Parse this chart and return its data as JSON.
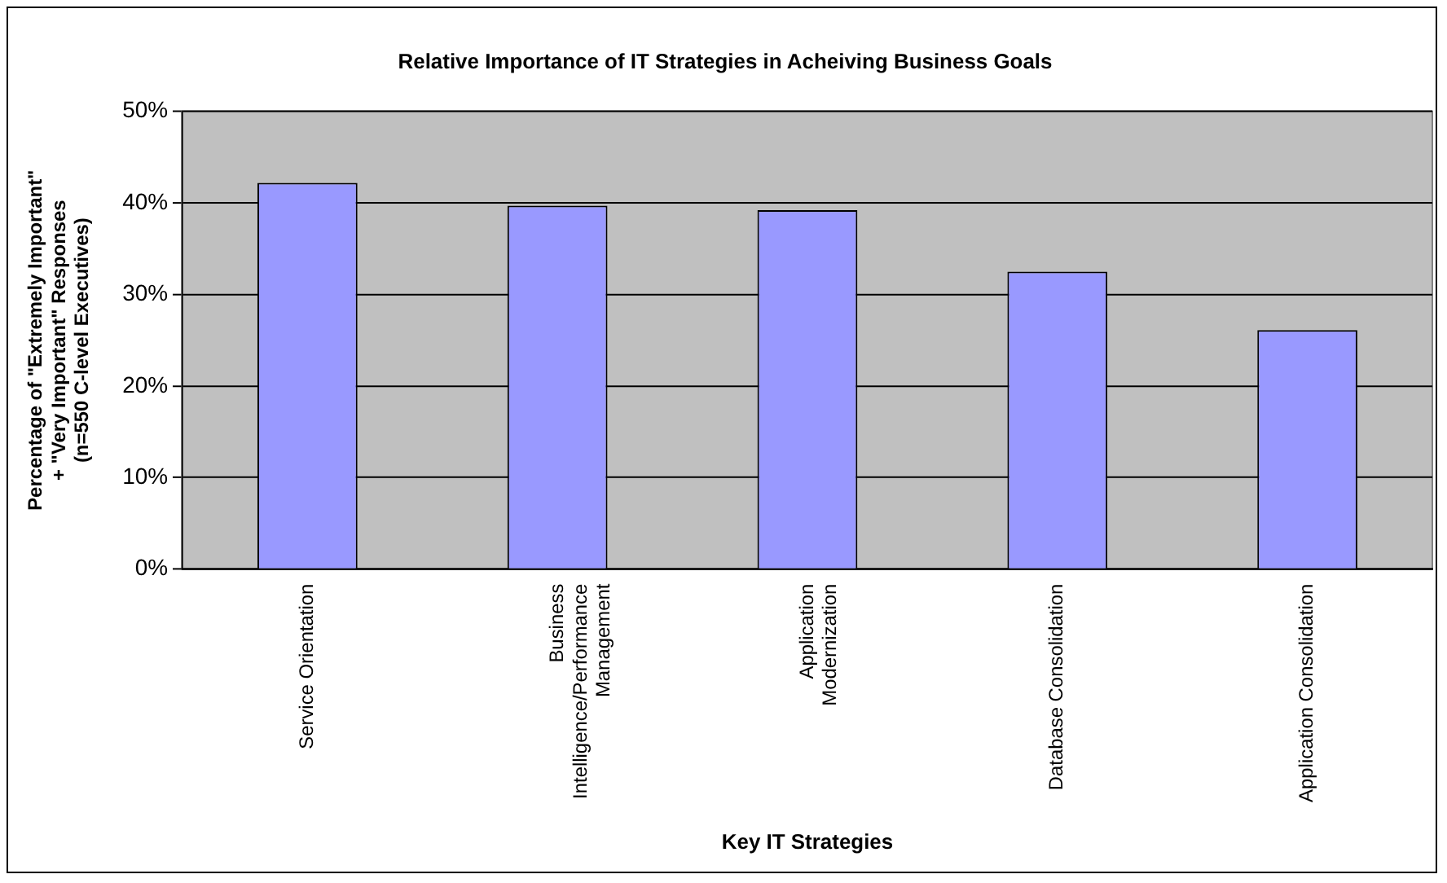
{
  "chart_data": {
    "type": "bar",
    "title": "Relative Importance of IT Strategies in Acheiving Business Goals",
    "xlabel": "Key IT Strategies",
    "ylabel": "Percentage of \"Extremely Important\"\n+ \"Very Important\" Responses\n(n=550 C-level Executives)",
    "categories": [
      "Service Orientation",
      "Business\nIntelligence/Performance\nManagement",
      "Application\nModernization",
      "Database Consolidation",
      "Application Consolidation"
    ],
    "values": [
      42.2,
      39.7,
      39.2,
      32.5,
      26.1
    ],
    "color": "#9999ff",
    "ylim": [
      0,
      50
    ],
    "yticks": [
      {
        "value": 0,
        "label": "0%"
      },
      {
        "value": 10,
        "label": "10%"
      },
      {
        "value": 20,
        "label": "20%"
      },
      {
        "value": 30,
        "label": "30%"
      },
      {
        "value": 40,
        "label": "40%"
      },
      {
        "value": 50,
        "label": "50%"
      }
    ],
    "grid": "y",
    "legend": false
  }
}
